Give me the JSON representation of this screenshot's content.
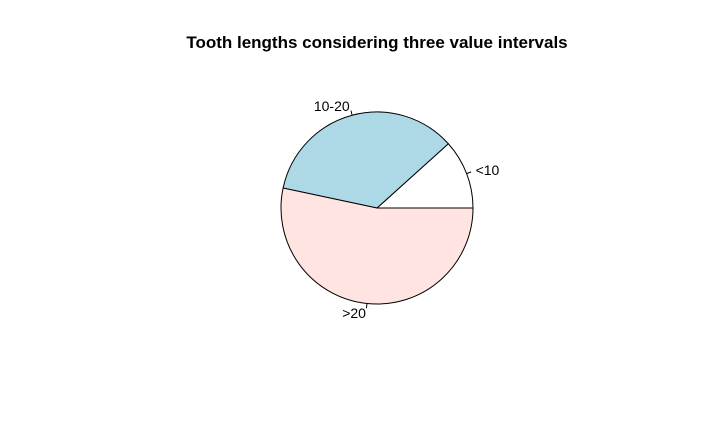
{
  "chart_data": {
    "type": "pie",
    "title": "Tooth lengths considering three value intervals",
    "labels": [
      "<10",
      "10-20",
      ">20"
    ],
    "values": [
      7,
      21,
      32
    ],
    "colors": [
      "#ffffff",
      "#add8e6",
      "#ffe4e1"
    ],
    "start_angle_deg": 0,
    "direction": "counterclockwise",
    "border_color": "#000000"
  }
}
